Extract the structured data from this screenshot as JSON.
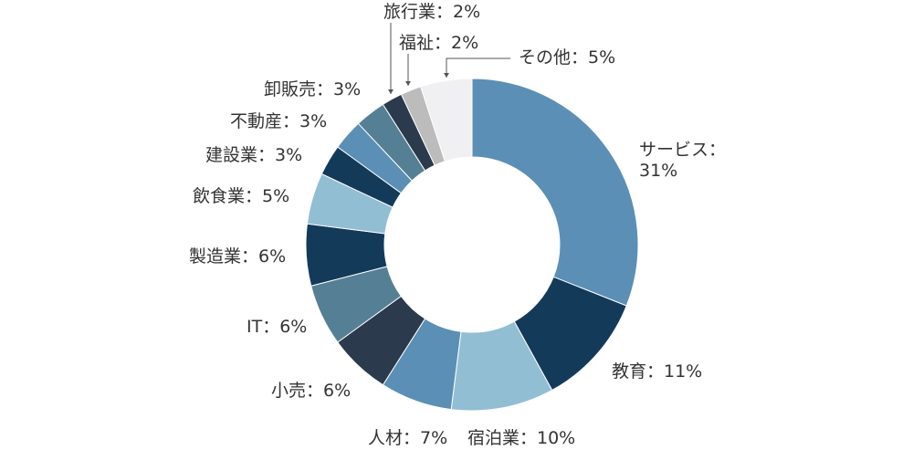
{
  "chart_data": {
    "type": "donut",
    "title": "",
    "categories": [
      "サービス",
      "教育",
      "宿泊業",
      "人材",
      "小売",
      "IT",
      "製造業",
      "飲食業",
      "建設業",
      "不動産",
      "卸販売",
      "旅行業",
      "福祉",
      "その他"
    ],
    "values": [
      31,
      11,
      10,
      7,
      6,
      6,
      6,
      5,
      3,
      3,
      3,
      2,
      2,
      5
    ],
    "unit": "%",
    "labels": [
      [
        "サービス：",
        "31%"
      ],
      [
        "教育：11%"
      ],
      [
        "宿泊業：10%"
      ],
      [
        "人材：7%"
      ],
      [
        "小売：6%"
      ],
      [
        "IT：6%"
      ],
      [
        "製造業：6%"
      ],
      [
        "飲食業：5%"
      ],
      [
        "建設業：3%"
      ],
      [
        "不動産：3%"
      ],
      [
        "卸販売：3%"
      ],
      [
        "旅行業：2%"
      ],
      [
        "福祉：2%"
      ],
      [
        "その他：5%"
      ]
    ],
    "colors": [
      "#5b8fb5",
      "#143a5a",
      "#92bed4",
      "#5b8fb5",
      "#2b3a4c",
      "#557f94",
      "#143a5a",
      "#92bed4",
      "#143a5a",
      "#5b8fb5",
      "#557f94",
      "#2b3a4c",
      "#bcbcbc",
      "#f0f0f2"
    ],
    "legend": "none"
  }
}
